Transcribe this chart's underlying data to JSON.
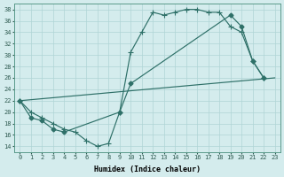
{
  "bg_color": "#d4eced",
  "line_color": "#2e7068",
  "grid_color": "#afd4d6",
  "xlabel": "Humidex (Indice chaleur)",
  "xlim": [
    -0.5,
    23.5
  ],
  "ylim": [
    13,
    39
  ],
  "yticks": [
    14,
    16,
    18,
    20,
    22,
    24,
    26,
    28,
    30,
    32,
    34,
    36,
    38
  ],
  "xticks": [
    0,
    1,
    2,
    3,
    4,
    5,
    6,
    7,
    8,
    9,
    10,
    11,
    12,
    13,
    14,
    15,
    16,
    17,
    18,
    19,
    20,
    21,
    22,
    23
  ],
  "line1_x": [
    0,
    1,
    2,
    3,
    4,
    5,
    6,
    7,
    8,
    9,
    10,
    11,
    12,
    13,
    14,
    15,
    16,
    17,
    18,
    19,
    20,
    21,
    22
  ],
  "line1_y": [
    22,
    20,
    19,
    18,
    17,
    16.5,
    15,
    14,
    14.5,
    20,
    30.5,
    34,
    37.5,
    37,
    37.5,
    38,
    38,
    37.5,
    37.5,
    35,
    34,
    29,
    26
  ],
  "line2_x": [
    0,
    23
  ],
  "line2_y": [
    22,
    26
  ],
  "line3_x": [
    0,
    1,
    2,
    3,
    4,
    9,
    10,
    19,
    20,
    21,
    22
  ],
  "line3_y": [
    22,
    19,
    18.5,
    17,
    16.5,
    20,
    25,
    37,
    35,
    29,
    26
  ]
}
